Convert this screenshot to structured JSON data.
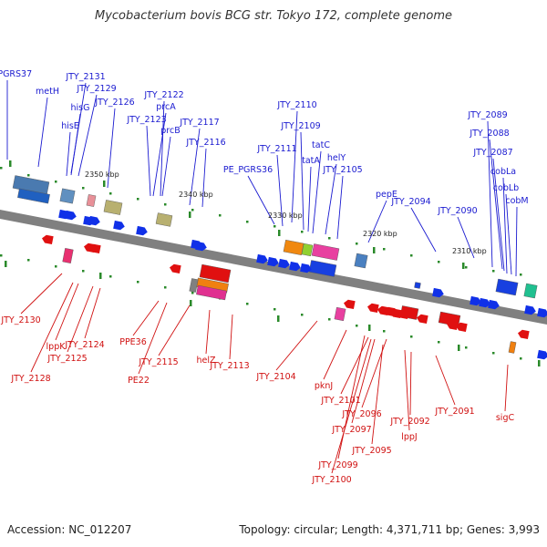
{
  "title": "Mycobacterium bovis BCG str. Tokyo 172, complete genome",
  "footer": {
    "accession": "Accession: NC_012207",
    "summary": "Topology: circular; Length: 4,371,711 bp; Genes: 3,993"
  },
  "colors": {
    "forward_label": "#1a1ad0",
    "reverse_label": "#d01010",
    "forward_gene": "#1030e8",
    "reverse_gene": "#e01010",
    "backbone": "#808080"
  },
  "kbp_ticks": [
    "2350 kbp",
    "2340 kbp",
    "2330 kbp",
    "2320 kbp",
    "2310 kbp"
  ],
  "forward_labels": [
    "PE_PGRS37",
    "metH",
    "JTY_2131",
    "JTY_2129",
    "hisG",
    "hisE",
    "JTY_2126",
    "JTY_2122",
    "prcA",
    "JTY_2123",
    "prcB",
    "JTY_2117",
    "JTY_2116",
    "JTY_2110",
    "JTY_2109",
    "tatC",
    "JTY_2111",
    "tatA",
    "helY",
    "PE_PGRS36",
    "JTY_2105",
    "pepE",
    "JTY_2094",
    "JTY_2090",
    "JTY_2089",
    "JTY_2088",
    "JTY_2087",
    "cobLa",
    "cobLb",
    "cobM"
  ],
  "reverse_labels": [
    "JTY_2130",
    "lppK",
    "JTY_2124",
    "JTY_2128",
    "JTY_2125",
    "PPE36",
    "PE22",
    "JTY_2115",
    "helZ",
    "JTY_2113",
    "JTY_2104",
    "pknJ",
    "JTY_2101",
    "JTY_2096",
    "JTY_2097",
    "JTY_2092",
    "JTY_2091",
    "lppJ",
    "JTY_2095",
    "JTY_2099",
    "JTY_2100",
    "sigC"
  ]
}
